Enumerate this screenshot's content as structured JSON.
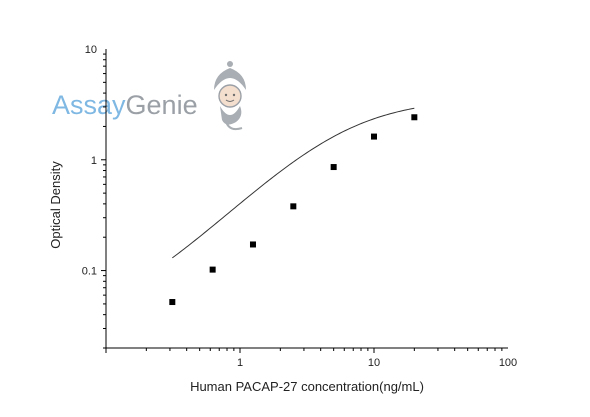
{
  "logo": {
    "part1": "Assay",
    "part2": "Genie",
    "color_part1": "#7fb8e3",
    "color_part2": "#9aa0a6"
  },
  "chart_data": {
    "type": "scatter",
    "xlabel": "Human PACAP-27 concentration(ng/mL)",
    "ylabel": "Optical Density",
    "x_scale": "log",
    "y_scale": "log",
    "xlim": [
      0.1,
      100
    ],
    "ylim": [
      0.02,
      10
    ],
    "x_ticks": [
      1,
      10,
      100
    ],
    "x_tick_labels": [
      "1",
      "10",
      "100"
    ],
    "y_ticks": [
      0.1,
      1,
      10
    ],
    "y_tick_labels": [
      "0.1",
      "1",
      "10"
    ],
    "grid": false,
    "legend": "none",
    "series": [
      {
        "marker": "square",
        "color": "#000000",
        "x": [
          0.3125,
          0.625,
          1.25,
          2.5,
          5,
          10,
          20
        ],
        "y": [
          0.052,
          0.102,
          0.172,
          0.38,
          0.86,
          1.62,
          2.42
        ]
      }
    ],
    "fit_curve": {
      "type": "4PL",
      "color": "#333333",
      "A": 0.03,
      "B": 1.2,
      "C": 6,
      "D": 3.6
    }
  }
}
